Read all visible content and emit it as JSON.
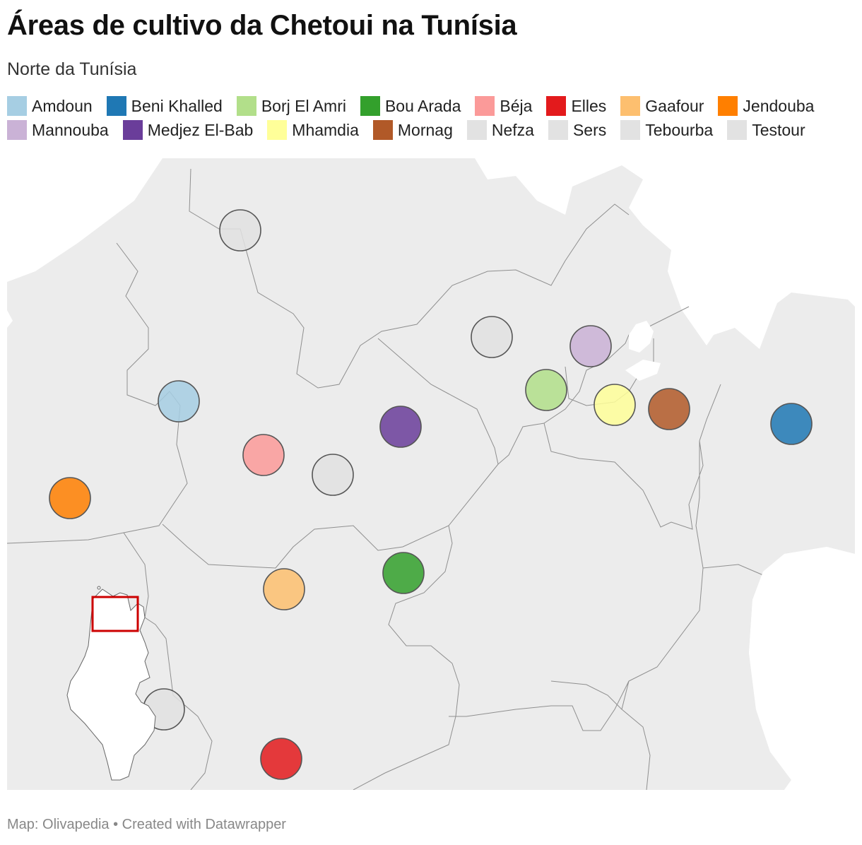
{
  "title": "Áreas de cultivo da Chetoui na Tunísia",
  "subtitle": "Norte da Tunísia",
  "footer": "Map: Olivapedia • Created with Datawrapper",
  "legend": [
    {
      "label": "Amdoun",
      "color": "#a6cee3"
    },
    {
      "label": "Beni Khalled",
      "color": "#1f78b4"
    },
    {
      "label": "Borj El Amri",
      "color": "#b2df8a"
    },
    {
      "label": "Bou Arada",
      "color": "#33a02c"
    },
    {
      "label": "Béja",
      "color": "#fb9a99"
    },
    {
      "label": "Elles",
      "color": "#e31a1c"
    },
    {
      "label": "Gaafour",
      "color": "#fdbf6f"
    },
    {
      "label": "Jendouba",
      "color": "#ff7f00"
    },
    {
      "label": "Mannouba",
      "color": "#cab2d6"
    },
    {
      "label": "Medjez El-Bab",
      "color": "#6a3d9a"
    },
    {
      "label": "Mhamdia",
      "color": "#ffff99"
    },
    {
      "label": "Mornag",
      "color": "#b15928"
    },
    {
      "label": "Nefza",
      "color": "#e2e2e2"
    },
    {
      "label": "Sers",
      "color": "#e2e2e2"
    },
    {
      "label": "Tebourba",
      "color": "#e2e2e2"
    },
    {
      "label": "Testour",
      "color": "#e2e2e2"
    }
  ],
  "colors": {
    "land": "#ececec",
    "border": "#8f8f8f",
    "marker_stroke": "#555555",
    "inset_highlight": "#cc0000"
  }
}
